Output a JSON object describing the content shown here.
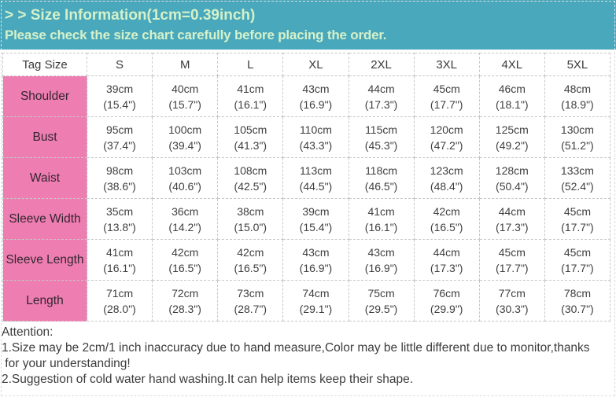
{
  "banner": {
    "title": "> > Size Information(1cm=0.39inch)",
    "subtitle": "Please check the size chart carefully before placing the order.",
    "bg_color": "#49a8bc",
    "text_color": "#d5f1c9"
  },
  "table": {
    "corner_label": "Tag Size",
    "label_bg_color": "#ee7db1",
    "columns": [
      "S",
      "M",
      "L",
      "XL",
      "2XL",
      "3XL",
      "4XL",
      "5XL"
    ],
    "rows": [
      {
        "label": "Shoulder",
        "cells": [
          {
            "cm": "39cm",
            "in": "(15.4\")"
          },
          {
            "cm": "40cm",
            "in": "(15.7\")"
          },
          {
            "cm": "41cm",
            "in": "(16.1\")"
          },
          {
            "cm": "43cm",
            "in": "(16.9\")"
          },
          {
            "cm": "44cm",
            "in": "(17.3\")"
          },
          {
            "cm": "45cm",
            "in": "(17.7\")"
          },
          {
            "cm": "46cm",
            "in": "(18.1\")"
          },
          {
            "cm": "48cm",
            "in": "(18.9\")"
          }
        ]
      },
      {
        "label": "Bust",
        "cells": [
          {
            "cm": "95cm",
            "in": "(37.4\")"
          },
          {
            "cm": "100cm",
            "in": "(39.4\")"
          },
          {
            "cm": "105cm",
            "in": "(41.3\")"
          },
          {
            "cm": "110cm",
            "in": "(43.3\")"
          },
          {
            "cm": "115cm",
            "in": "(45.3\")"
          },
          {
            "cm": "120cm",
            "in": "(47.2\")"
          },
          {
            "cm": "125cm",
            "in": "(49.2\")"
          },
          {
            "cm": "130cm",
            "in": "(51.2\")"
          }
        ]
      },
      {
        "label": "Waist",
        "cells": [
          {
            "cm": "98cm",
            "in": "(38.6\")"
          },
          {
            "cm": "103cm",
            "in": "(40.6\")"
          },
          {
            "cm": "108cm",
            "in": "(42.5\")"
          },
          {
            "cm": "113cm",
            "in": "(44.5\")"
          },
          {
            "cm": "118cm",
            "in": "(46.5\")"
          },
          {
            "cm": "123cm",
            "in": "(48.4\")"
          },
          {
            "cm": "128cm",
            "in": "(50.4\")"
          },
          {
            "cm": "133cm",
            "in": "(52.4\")"
          }
        ]
      },
      {
        "label": "Sleeve Width",
        "cells": [
          {
            "cm": "35cm",
            "in": "(13.8\")"
          },
          {
            "cm": "36cm",
            "in": "(14.2\")"
          },
          {
            "cm": "38cm",
            "in": "(15.0\")"
          },
          {
            "cm": "39cm",
            "in": "(15.4\")"
          },
          {
            "cm": "41cm",
            "in": "(16.1\")"
          },
          {
            "cm": "42cm",
            "in": "(16.5\")"
          },
          {
            "cm": "44cm",
            "in": "(17.3\")"
          },
          {
            "cm": "45cm",
            "in": "(17.7\")"
          }
        ]
      },
      {
        "label": "Sleeve Length",
        "cells": [
          {
            "cm": "41cm",
            "in": "(16.1\")"
          },
          {
            "cm": "42cm",
            "in": "(16.5\")"
          },
          {
            "cm": "42cm",
            "in": "(16.5\")"
          },
          {
            "cm": "43cm",
            "in": "(16.9\")"
          },
          {
            "cm": "43cm",
            "in": "(16.9\")"
          },
          {
            "cm": "44cm",
            "in": "(17.3\")"
          },
          {
            "cm": "45cm",
            "in": "(17.7\")"
          },
          {
            "cm": "45cm",
            "in": "(17.7\")"
          }
        ]
      },
      {
        "label": "Length",
        "cells": [
          {
            "cm": "71cm",
            "in": "(28.0\")"
          },
          {
            "cm": "72cm",
            "in": "(28.3\")"
          },
          {
            "cm": "73cm",
            "in": "(28.7\")"
          },
          {
            "cm": "74cm",
            "in": "(29.1\")"
          },
          {
            "cm": "75cm",
            "in": "(29.5\")"
          },
          {
            "cm": "76cm",
            "in": "(29.9\")"
          },
          {
            "cm": "77cm",
            "in": "(30.3\")"
          },
          {
            "cm": "78cm",
            "in": "(30.7\")"
          }
        ]
      }
    ]
  },
  "attention": {
    "heading": "Attention:",
    "lines": [
      "1.Size may be 2cm/1 inch inaccuracy due to hand measure,Color may be little different due to monitor,thanks",
      " for your understanding!",
      "2.Suggestion of cold water hand washing.It can help items keep their shape."
    ]
  }
}
